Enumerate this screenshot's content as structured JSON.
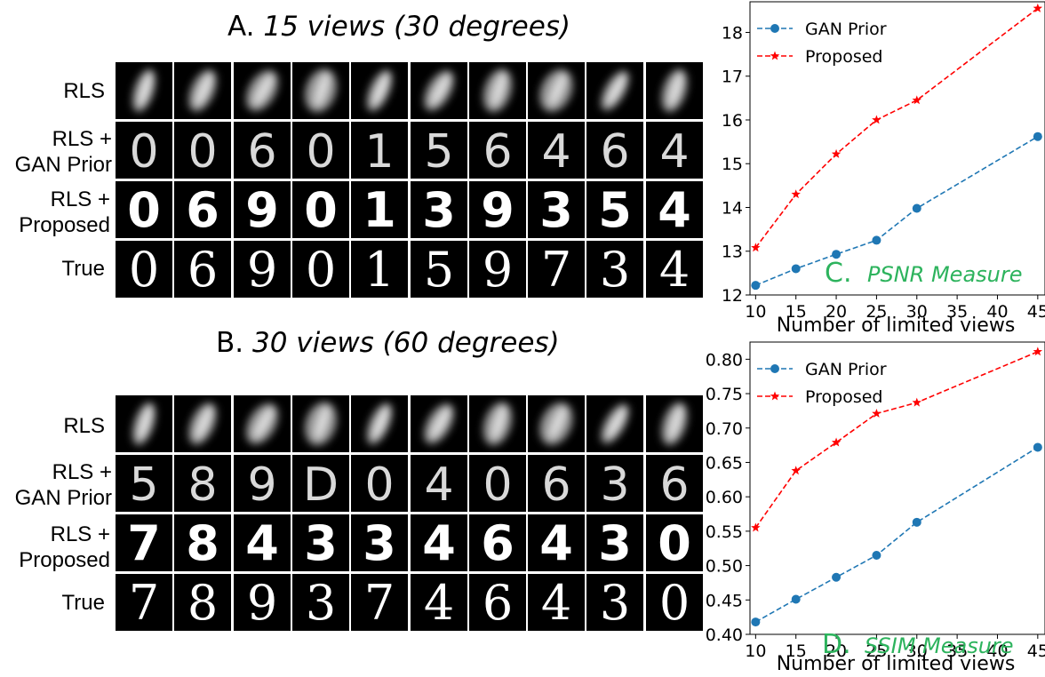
{
  "panels": {
    "a": {
      "letter": "A.",
      "subtitle": "15 views (30 degrees)"
    },
    "b": {
      "letter": "B.",
      "subtitle": "30 views (60 degrees)"
    }
  },
  "row_labels": {
    "rls": "RLS",
    "gan_1": "RLS +",
    "gan_2": "GAN Prior",
    "prop_1": "RLS +",
    "prop_2": "Proposed",
    "true": "True"
  },
  "digits": {
    "a": [
      "0",
      "6",
      "9",
      "0",
      "1",
      "5",
      "9",
      "7",
      "3",
      "4"
    ],
    "a_gan": [
      "0",
      "0",
      "6",
      "0",
      "1",
      "5",
      "6",
      "4",
      "6",
      "4"
    ],
    "a_prop": [
      "0",
      "6",
      "9",
      "0",
      "1",
      "3",
      "9",
      "3",
      "5",
      "4"
    ],
    "b": [
      "7",
      "8",
      "9",
      "3",
      "7",
      "4",
      "6",
      "4",
      "3",
      "0"
    ],
    "b_gan": [
      "5",
      "8",
      "9",
      "D",
      "0",
      "4",
      "0",
      "6",
      "3",
      "6"
    ],
    "b_prop": [
      "7",
      "8",
      "4",
      "3",
      "3",
      "4",
      "6",
      "4",
      "3",
      "0"
    ]
  },
  "colors": {
    "title": "#2db35d",
    "gan": "#1f77b4",
    "proposed": "#ff0000",
    "tile_bg": "#000000",
    "digit": "#ffffff"
  },
  "chart_data": [
    {
      "type": "line",
      "annotation": {
        "letter": "C.",
        "text": "PSNR Measure"
      },
      "xlabel": "Number of limited views",
      "ylabel": "",
      "x": [
        10,
        15,
        20,
        25,
        30,
        45
      ],
      "xticks": [
        10,
        15,
        20,
        25,
        30,
        35,
        40,
        45
      ],
      "yticks": [
        12,
        13,
        14,
        15,
        16,
        17,
        18
      ],
      "xlim": [
        9.3,
        45.9
      ],
      "ylim": [
        12.0,
        18.7
      ],
      "legend": "top-left",
      "grid": false,
      "series": [
        {
          "name": "GAN Prior",
          "marker": "circle",
          "line": "dashed",
          "values": [
            12.22,
            12.6,
            12.93,
            13.25,
            13.98,
            15.62
          ]
        },
        {
          "name": "Proposed",
          "marker": "star",
          "line": "dashed",
          "values": [
            13.08,
            14.3,
            15.22,
            16.0,
            16.45,
            18.55
          ]
        }
      ]
    },
    {
      "type": "line",
      "annotation": {
        "letter": "D.",
        "text": "SSIM Measure"
      },
      "xlabel": "Number of limited views",
      "ylabel": "",
      "x": [
        10,
        15,
        20,
        25,
        30,
        45
      ],
      "xticks": [
        10,
        15,
        20,
        25,
        30,
        35,
        40,
        45
      ],
      "yticks": [
        "0.40",
        "0.45",
        "0.50",
        "0.55",
        "0.60",
        "0.65",
        "0.70",
        "0.75",
        "0.80"
      ],
      "xlim": [
        9.3,
        45.9
      ],
      "ylim": [
        0.4,
        0.825
      ],
      "legend": "top-left",
      "grid": false,
      "series": [
        {
          "name": "GAN Prior",
          "marker": "circle",
          "line": "dashed",
          "values": [
            0.418,
            0.451,
            0.483,
            0.515,
            0.563,
            0.672
          ]
        },
        {
          "name": "Proposed",
          "marker": "star",
          "line": "dashed",
          "values": [
            0.555,
            0.638,
            0.679,
            0.721,
            0.737,
            0.811
          ]
        }
      ]
    }
  ]
}
